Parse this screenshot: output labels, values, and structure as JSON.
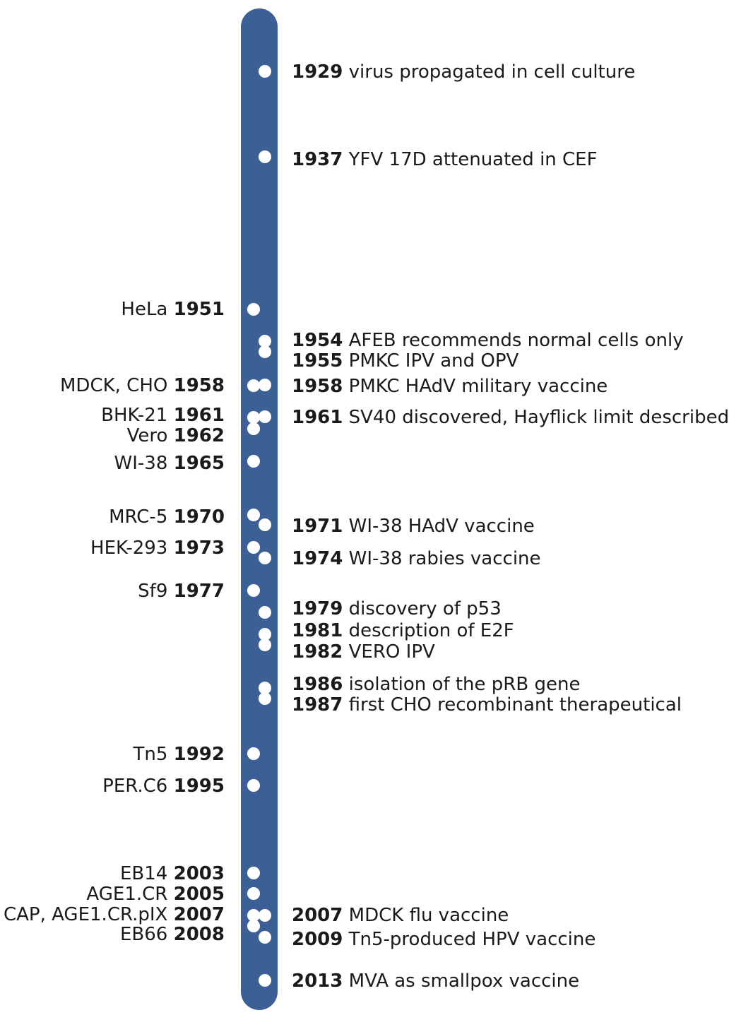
{
  "colors": {
    "bar": "#3c6095",
    "dot": "#ffffff",
    "text": "#1a1a1a"
  },
  "cell_lines": [
    {
      "name": "HeLa",
      "year": "1951"
    },
    {
      "name": "MDCK, CHO",
      "year": "1958"
    },
    {
      "name": "BHK-21",
      "year": "1961"
    },
    {
      "name": "Vero",
      "year": "1962"
    },
    {
      "name": "WI-38",
      "year": "1965"
    },
    {
      "name": "MRC-5",
      "year": "1970"
    },
    {
      "name": "HEK-293",
      "year": "1973"
    },
    {
      "name": "Sf9",
      "year": "1977"
    },
    {
      "name": "Tn5",
      "year": "1992"
    },
    {
      "name": "PER.C6",
      "year": "1995"
    },
    {
      "name": "EB14",
      "year": "2003"
    },
    {
      "name": "AGE1.CR",
      "year": "2005"
    },
    {
      "name": "CAP, AGE1.CR.pIX",
      "year": "2007"
    },
    {
      "name": "EB66",
      "year": "2008"
    }
  ],
  "events": [
    {
      "year": "1929",
      "text": "virus propagated in cell culture"
    },
    {
      "year": "1937",
      "text": "YFV 17D attenuated in CEF"
    },
    {
      "year": "1954",
      "text": "AFEB recommends normal cells only"
    },
    {
      "year": "1955",
      "text": "PMKC IPV and OPV"
    },
    {
      "year": "1958",
      "text": "PMKC HAdV military vaccine"
    },
    {
      "year": "1961",
      "text": "SV40 discovered, Hayflick limit described"
    },
    {
      "year": "1971",
      "text": "WI-38 HAdV vaccine"
    },
    {
      "year": "1974",
      "text": "WI-38 rabies vaccine"
    },
    {
      "year": "1979",
      "text": "discovery of p53"
    },
    {
      "year": "1981",
      "text": "description of E2F"
    },
    {
      "year": "1982",
      "text": "VERO IPV"
    },
    {
      "year": "1986",
      "text": "isolation of the pRB gene"
    },
    {
      "year": "1987",
      "text": "first CHO recombinant therapeutical"
    },
    {
      "year": "2007",
      "text": "MDCK flu vaccine"
    },
    {
      "year": "2009",
      "text": "Tn5-produced HPV vaccine"
    },
    {
      "year": "2013",
      "text": "MVA as smallpox vaccine"
    }
  ]
}
